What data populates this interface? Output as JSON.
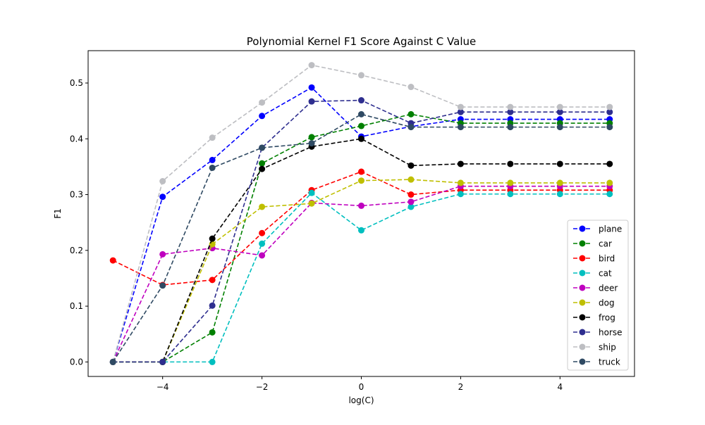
{
  "chart_data": {
    "type": "line",
    "title": "Polynomial Kernel F1 Score Against C Value",
    "xlabel": "log(C)",
    "ylabel": "F1",
    "xlim": [
      -5.5,
      5.5
    ],
    "ylim": [
      -0.026,
      0.558
    ],
    "xticks": [
      -4,
      -2,
      0,
      2,
      4
    ],
    "xtick_labels": [
      "−4",
      "−2",
      "0",
      "2",
      "4"
    ],
    "yticks": [
      0.0,
      0.1,
      0.2,
      0.3,
      0.4,
      0.5
    ],
    "ytick_labels": [
      "0.0",
      "0.1",
      "0.2",
      "0.3",
      "0.4",
      "0.5"
    ],
    "grid": false,
    "legend_position": "lower-right",
    "line_style": "dashed",
    "marker": "circle",
    "x": [
      -5,
      -4,
      -3,
      -2,
      -1,
      0,
      1,
      2,
      3,
      4,
      5
    ],
    "series": [
      {
        "name": "plane",
        "color": "#0000ff",
        "values": [
          0.0,
          0.296,
          0.362,
          0.441,
          0.492,
          0.404,
          0.422,
          0.435,
          0.435,
          0.435,
          0.435
        ]
      },
      {
        "name": "car",
        "color": "#008000",
        "values": [
          0.0,
          0.0,
          0.053,
          0.356,
          0.403,
          0.423,
          0.444,
          0.428,
          0.428,
          0.428,
          0.428
        ]
      },
      {
        "name": "bird",
        "color": "#ff0000",
        "values": [
          0.182,
          0.138,
          0.147,
          0.231,
          0.308,
          0.341,
          0.3,
          0.308,
          0.308,
          0.308,
          0.308
        ]
      },
      {
        "name": "cat",
        "color": "#00bfbf",
        "values": [
          0.0,
          0.0,
          0.0,
          0.212,
          0.303,
          0.236,
          0.278,
          0.301,
          0.301,
          0.301,
          0.301
        ]
      },
      {
        "name": "deer",
        "color": "#bf00bf",
        "values": [
          0.0,
          0.193,
          0.204,
          0.191,
          0.285,
          0.28,
          0.287,
          0.315,
          0.315,
          0.315,
          0.315
        ]
      },
      {
        "name": "dog",
        "color": "#bfbf00",
        "values": [
          0.0,
          0.0,
          0.211,
          0.278,
          0.284,
          0.325,
          0.327,
          0.321,
          0.321,
          0.321,
          0.321
        ]
      },
      {
        "name": "frog",
        "color": "#000000",
        "values": [
          0.0,
          0.0,
          0.221,
          0.346,
          0.386,
          0.4,
          0.352,
          0.355,
          0.355,
          0.355,
          0.355
        ]
      },
      {
        "name": "horse",
        "color": "#2e2e8f",
        "values": [
          0.0,
          0.0,
          0.101,
          0.384,
          0.467,
          0.469,
          0.428,
          0.448,
          0.448,
          0.448,
          0.448
        ]
      },
      {
        "name": "ship",
        "color": "#bdbec2",
        "values": [
          0.0,
          0.324,
          0.402,
          0.465,
          0.532,
          0.514,
          0.493,
          0.457,
          0.457,
          0.457,
          0.457
        ]
      },
      {
        "name": "truck",
        "color": "#2f4a63",
        "values": [
          0.0,
          0.137,
          0.348,
          0.384,
          0.392,
          0.444,
          0.421,
          0.421,
          0.421,
          0.421,
          0.421
        ]
      }
    ]
  }
}
